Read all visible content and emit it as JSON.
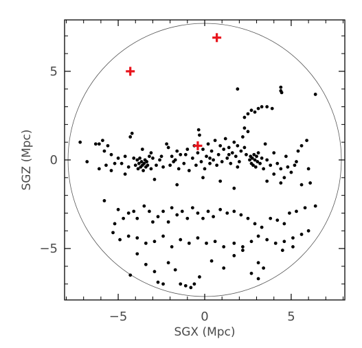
{
  "chart_data": {
    "type": "scatter",
    "xlabel": "SGX (Mpc)",
    "ylabel": "SGZ (Mpc)",
    "xlim": [
      -8.1,
      8.1
    ],
    "ylim": [
      -7.9,
      7.9
    ],
    "xticks": [
      -5,
      0,
      5
    ],
    "xtick_labels": [
      "−5",
      "0",
      "5"
    ],
    "yticks": [
      -5,
      0,
      5
    ],
    "ytick_labels": [
      "−5",
      "0",
      "5"
    ],
    "grid": false,
    "boundary_circle": {
      "center": [
        0,
        0
      ],
      "radius": 7.9
    },
    "series": [
      {
        "marker": "dot",
        "color": "#000000",
        "points": [
          [
            -7.2,
            1.0
          ],
          [
            -6.3,
            0.9
          ],
          [
            -6.1,
            0.9
          ],
          [
            -5.9,
            1.1
          ],
          [
            -5.6,
            0.8
          ],
          [
            -5.4,
            0.3
          ],
          [
            -6.1,
            -0.5
          ],
          [
            -5.7,
            -0.3
          ],
          [
            -5.4,
            -0.6
          ],
          [
            -5.2,
            -0.2
          ],
          [
            -5.0,
            0.1
          ],
          [
            -4.8,
            -0.2
          ],
          [
            -4.6,
            0.2
          ],
          [
            -4.4,
            -0.4
          ],
          [
            -4.3,
            1.3
          ],
          [
            -4.2,
            1.5
          ],
          [
            -4.1,
            0.1
          ],
          [
            -4.0,
            -0.3
          ],
          [
            -3.9,
            0.0
          ],
          [
            -3.85,
            -0.5
          ],
          [
            -3.8,
            -0.2
          ],
          [
            -3.75,
            0.1
          ],
          [
            -3.7,
            -0.4
          ],
          [
            -3.65,
            -0.1
          ],
          [
            -3.6,
            -0.3
          ],
          [
            -3.55,
            -0.6
          ],
          [
            -3.5,
            -0.2
          ],
          [
            -3.45,
            0.0
          ],
          [
            -3.4,
            -0.4
          ],
          [
            -3.35,
            -0.1
          ],
          [
            -3.3,
            -0.3
          ],
          [
            -3.2,
            0.2
          ],
          [
            -3.1,
            -0.5
          ],
          [
            -3.0,
            0.1
          ],
          [
            -2.8,
            -0.3
          ],
          [
            -2.6,
            0.0
          ],
          [
            -2.4,
            -0.4
          ],
          [
            -2.2,
            0.9
          ],
          [
            -2.1,
            0.7
          ],
          [
            -2.0,
            -0.3
          ],
          [
            -1.9,
            0.2
          ],
          [
            -1.8,
            -0.1
          ],
          [
            -1.6,
            0.5
          ],
          [
            -1.5,
            -0.5
          ],
          [
            -1.4,
            0.3
          ],
          [
            -1.2,
            -0.2
          ],
          [
            -1.0,
            0.6
          ],
          [
            -0.9,
            -0.6
          ],
          [
            -0.7,
            0.1
          ],
          [
            -0.6,
            0.8
          ],
          [
            -0.5,
            -0.3
          ],
          [
            -0.4,
            0.4
          ],
          [
            -0.35,
            1.7
          ],
          [
            -0.3,
            1.4
          ],
          [
            -0.2,
            -0.1
          ],
          [
            -0.1,
            0.6
          ],
          [
            0.0,
            -0.5
          ],
          [
            0.1,
            0.2
          ],
          [
            0.2,
            0.9
          ],
          [
            0.3,
            -0.2
          ],
          [
            0.4,
            0.5
          ],
          [
            0.5,
            0.0
          ],
          [
            0.6,
            1.1
          ],
          [
            0.7,
            -0.3
          ],
          [
            0.8,
            0.3
          ],
          [
            0.9,
            0.8
          ],
          [
            1.0,
            -0.1
          ],
          [
            1.1,
            0.6
          ],
          [
            1.2,
            1.2
          ],
          [
            1.3,
            0.1
          ],
          [
            1.4,
            0.7
          ],
          [
            1.5,
            -0.2
          ],
          [
            1.6,
            0.4
          ],
          [
            1.7,
            1.0
          ],
          [
            1.8,
            0.2
          ],
          [
            1.9,
            0.8
          ],
          [
            2.0,
            -0.1
          ],
          [
            2.1,
            0.5
          ],
          [
            2.2,
            1.3
          ],
          [
            2.3,
            1.8
          ],
          [
            2.4,
            0.3
          ],
          [
            2.5,
            1.6
          ],
          [
            2.6,
            0.0
          ],
          [
            2.65,
            0.2
          ],
          [
            2.7,
            -0.2
          ],
          [
            2.75,
            0.1
          ],
          [
            2.8,
            -0.3
          ],
          [
            2.85,
            0.3
          ],
          [
            2.9,
            0.0
          ],
          [
            2.95,
            -0.4
          ],
          [
            3.0,
            0.2
          ],
          [
            3.05,
            -0.1
          ],
          [
            3.1,
            0.4
          ],
          [
            3.2,
            -0.2
          ],
          [
            3.3,
            0.1
          ],
          [
            3.4,
            -0.5
          ],
          [
            3.6,
            0.0
          ],
          [
            3.8,
            -0.3
          ],
          [
            4.0,
            -0.8
          ],
          [
            4.2,
            -0.2
          ],
          [
            4.4,
            -0.5
          ],
          [
            4.6,
            -1.0
          ],
          [
            4.8,
            -0.4
          ],
          [
            5.0,
            -0.7
          ],
          [
            5.2,
            -0.3
          ],
          [
            5.4,
            0.5
          ],
          [
            5.6,
            0.8
          ],
          [
            5.9,
            1.1
          ],
          [
            6.0,
            -0.5
          ],
          [
            6.1,
            -1.3
          ],
          [
            2.3,
            2.4
          ],
          [
            2.5,
            2.6
          ],
          [
            2.7,
            2.8
          ],
          [
            2.9,
            2.7
          ],
          [
            3.1,
            2.9
          ],
          [
            3.3,
            3.0
          ],
          [
            3.6,
            3.0
          ],
          [
            3.9,
            2.9
          ],
          [
            1.9,
            4.0
          ],
          [
            4.4,
            4.1
          ],
          [
            4.4,
            3.9
          ],
          [
            4.45,
            3.8
          ],
          [
            6.4,
            3.7
          ],
          [
            -5.8,
            -2.3
          ],
          [
            -5.0,
            -2.8
          ],
          [
            -5.2,
            -3.6
          ],
          [
            -4.7,
            -3.3
          ],
          [
            -4.4,
            -3.0
          ],
          [
            -4.1,
            -2.9
          ],
          [
            -3.9,
            -3.3
          ],
          [
            -3.5,
            -2.6
          ],
          [
            -3.2,
            -2.9
          ],
          [
            -3.0,
            -3.5
          ],
          [
            -2.7,
            -3.2
          ],
          [
            -2.4,
            -2.9
          ],
          [
            -2.1,
            -3.5
          ],
          [
            -1.9,
            -2.7
          ],
          [
            -1.6,
            -3.1
          ],
          [
            -1.3,
            -2.9
          ],
          [
            -1.0,
            -3.3
          ],
          [
            -0.7,
            -2.7
          ],
          [
            -0.4,
            -3.0
          ],
          [
            -0.1,
            -3.3
          ],
          [
            0.2,
            -2.9
          ],
          [
            0.5,
            -3.2
          ],
          [
            0.9,
            -2.8
          ],
          [
            1.3,
            -3.0
          ],
          [
            1.7,
            -2.9
          ],
          [
            2.1,
            -3.1
          ],
          [
            2.5,
            -3.3
          ],
          [
            2.9,
            -3.6
          ],
          [
            3.3,
            -3.8
          ],
          [
            3.8,
            -3.3
          ],
          [
            4.2,
            -3.4
          ],
          [
            4.6,
            -3.6
          ],
          [
            4.9,
            -3.0
          ],
          [
            5.3,
            -2.9
          ],
          [
            5.8,
            -2.7
          ],
          [
            6.4,
            -2.6
          ],
          [
            -5.3,
            -4.1
          ],
          [
            -4.9,
            -4.5
          ],
          [
            -4.4,
            -4.3
          ],
          [
            -3.9,
            -4.4
          ],
          [
            -3.4,
            -4.7
          ],
          [
            -2.9,
            -4.6
          ],
          [
            -2.4,
            -4.3
          ],
          [
            -1.9,
            -4.9
          ],
          [
            -1.4,
            -4.5
          ],
          [
            -0.9,
            -4.7
          ],
          [
            -0.4,
            -4.4
          ],
          [
            0.1,
            -4.7
          ],
          [
            0.6,
            -4.6
          ],
          [
            1.1,
            -4.9
          ],
          [
            1.7,
            -4.7
          ],
          [
            2.2,
            -4.9
          ],
          [
            2.7,
            -4.6
          ],
          [
            3.1,
            -4.3
          ],
          [
            3.6,
            -4.5
          ],
          [
            4.1,
            -4.7
          ],
          [
            4.6,
            -4.6
          ],
          [
            5.1,
            -4.4
          ],
          [
            5.6,
            -4.2
          ],
          [
            6.0,
            -4.0
          ],
          [
            -4.3,
            -6.5
          ],
          [
            -3.9,
            -5.3
          ],
          [
            -3.4,
            -5.9
          ],
          [
            -2.9,
            -6.3
          ],
          [
            -2.7,
            -6.9
          ],
          [
            -2.4,
            -7.0
          ],
          [
            -2.1,
            -5.8
          ],
          [
            -1.7,
            -6.2
          ],
          [
            -1.4,
            -7.0
          ],
          [
            -1.1,
            -7.1
          ],
          [
            -0.8,
            -7.2
          ],
          [
            -0.6,
            -7.0
          ],
          [
            -0.3,
            -6.6
          ],
          [
            0.4,
            -5.7
          ],
          [
            1.1,
            -6.1
          ],
          [
            1.7,
            -5.4
          ],
          [
            2.2,
            -5.1
          ],
          [
            2.7,
            -6.4
          ],
          [
            3.1,
            -5.8
          ],
          [
            3.4,
            -6.1
          ],
          [
            3.1,
            -6.7
          ],
          [
            4.5,
            -5.1
          ],
          [
            5.1,
            -4.9
          ],
          [
            -3.1,
            0.4
          ],
          [
            -2.5,
            0.2
          ],
          [
            -1.7,
            0.0
          ],
          [
            -1.1,
            0.3
          ],
          [
            0.3,
            0.1
          ],
          [
            1.4,
            0.3
          ],
          [
            1.9,
            -0.4
          ],
          [
            2.3,
            0.7
          ],
          [
            3.5,
            0.9
          ],
          [
            4.0,
            0.4
          ],
          [
            4.7,
            0.2
          ],
          [
            5.3,
            -0.1
          ],
          [
            -2.9,
            -1.1
          ],
          [
            -1.6,
            -1.4
          ],
          [
            -0.1,
            -1.0
          ],
          [
            0.9,
            -1.2
          ],
          [
            1.7,
            -1.6
          ],
          [
            3.6,
            -1.2
          ],
          [
            4.4,
            -1.3
          ],
          [
            5.6,
            -1.4
          ],
          [
            -6.8,
            -0.1
          ],
          [
            -5.8,
            0.5
          ],
          [
            -4.6,
            -0.8
          ],
          [
            -3.6,
            0.6
          ]
        ]
      },
      {
        "marker": "plus",
        "color": "#e8141c",
        "points": [
          [
            0.7,
            6.9
          ],
          [
            -4.3,
            5.0
          ],
          [
            -0.4,
            0.8
          ]
        ]
      }
    ]
  }
}
